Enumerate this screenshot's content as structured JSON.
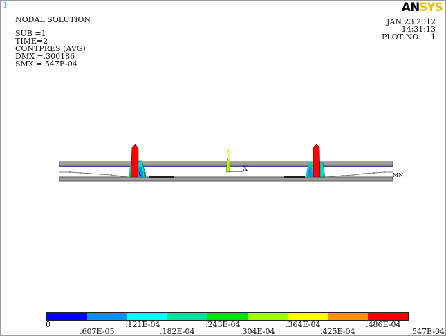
{
  "window_number": "1",
  "header": {
    "title": "NODAL SOLUTION",
    "sub": "SUB =1",
    "time": "TIME=2",
    "result": "CONTPRES (AVG)",
    "dmx": "DMX =.300186",
    "smx": "SMX =.547E-04"
  },
  "logo": {
    "part1": "AN",
    "part2": "SYS"
  },
  "date": "JAN 23 2012",
  "time_stamp": "14:31:13",
  "plot_no_label": "PLOT NO.",
  "plot_no": "1",
  "axis": {
    "y_label": "Y",
    "x_label": "X"
  },
  "markers": {
    "min": "MN",
    "max": "MX"
  },
  "legend": {
    "colors": [
      "#0000ff",
      "#0f8ff0",
      "#00ffff",
      "#00e0a0",
      "#00e000",
      "#a0ff00",
      "#ffff00",
      "#ff9000",
      "#ff0000"
    ],
    "ticks_top": [
      "0",
      ".121E-04",
      ".243E-04",
      ".364E-04",
      ".486E-04"
    ],
    "ticks_bottom": [
      ".607E-05",
      ".182E-04",
      ".304E-04",
      ".425E-04",
      ".547E-04"
    ]
  },
  "colors": {
    "plate": "#9e9e9e",
    "contact_line": "#3b3bd8",
    "path_line": "#7a7a7a",
    "legend_text": "#111111"
  }
}
